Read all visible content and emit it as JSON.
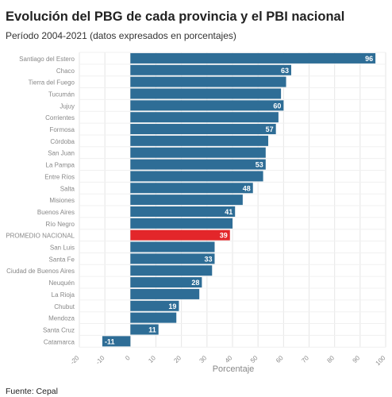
{
  "header": {
    "title": "Evolución del PBG de cada provincia y el PBI nacional",
    "subtitle": "Período 2004-2021 (datos expresados en porcentajes)"
  },
  "footer": {
    "source": "Fuente: Cepal"
  },
  "colors": {
    "bar": "#2e6d96",
    "highlight": "#e3262a",
    "grid": "#e6e6e6",
    "label": "#888888",
    "value_label": "#ffffff"
  },
  "chart_data": {
    "type": "bar",
    "orientation": "horizontal",
    "title": "Evolución del PBG de cada provincia y el PBI nacional",
    "subtitle": "Período 2004-2021 (datos expresados en porcentajes)",
    "xlabel": "Porcentaje",
    "ylabel": "",
    "xlim": [
      -20,
      100
    ],
    "xticks": [
      -20,
      -10,
      0,
      10,
      20,
      30,
      40,
      50,
      60,
      70,
      80,
      90,
      100
    ],
    "grid": true,
    "highlight_category": "PROMEDIO NACIONAL",
    "categories": [
      "Santiago del Estero",
      "Chaco",
      "Tierra del Fuego",
      "Tucumán",
      "Jujuy",
      "Corrientes",
      "Formosa",
      "Córdoba",
      "San Juan",
      "La Pampa",
      "Entre Ríos",
      "Salta",
      "Misiones",
      "Buenos Aires",
      "Río Negro",
      "PROMEDIO NACIONAL",
      "San Luis",
      "Santa Fe",
      "Ciudad de Buenos Aires",
      "Neuquén",
      "La Rioja",
      "Chubut",
      "Mendoza",
      "Santa Cruz",
      "Catamarca"
    ],
    "values": [
      96,
      63,
      61,
      59,
      60,
      58,
      57,
      54,
      53,
      53,
      52,
      48,
      44,
      41,
      40,
      39,
      33,
      33,
      32,
      28,
      27,
      19,
      18,
      11,
      -11
    ],
    "data_labels": [
      "96",
      "63",
      "",
      "",
      "60",
      "",
      "57",
      "",
      "",
      "53",
      "",
      "48",
      "",
      "41",
      "",
      "39",
      "",
      "33",
      "",
      "28",
      "",
      "19",
      "",
      "11",
      "-11"
    ]
  }
}
